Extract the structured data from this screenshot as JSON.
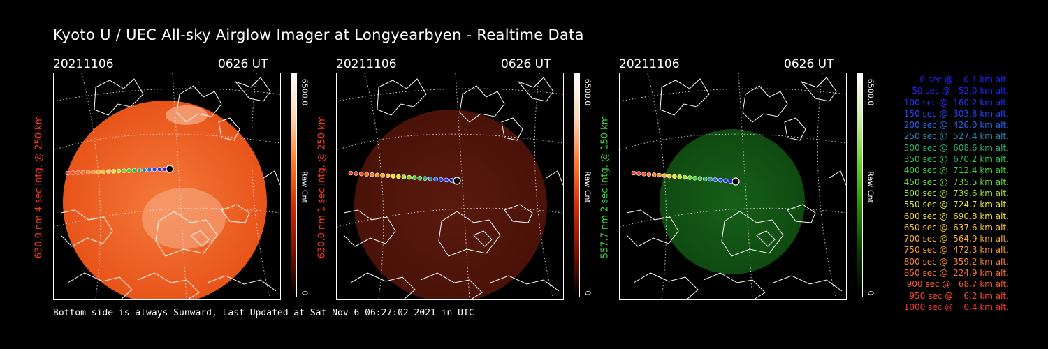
{
  "title": "Kyoto U / UEC All-sky Airglow Imager at Longyearbyen - Realtime Data",
  "footer": "Bottom side is always Sunward, Last Updated at Sat Nov  6 06:27:02 2021 in UTC",
  "panels": [
    {
      "date": "20211106",
      "time": "0626 UT",
      "ylabel": "630.0 nm 4 sec intg. @ 250 km",
      "ylabel_color": "#ff3a1a",
      "colorbar_max": "6500.0",
      "colorbar_min": "0",
      "colorbar_label": "Raw Cnt",
      "colorbar_gradient": [
        "#ffffff",
        "#ffd6b0",
        "#ff7a2a",
        "#d62a00",
        "#7a0f00",
        "#000000"
      ],
      "disk_color": "#e8541a",
      "disk_inner": "#f47a3a",
      "disk_opacity": 1.0
    },
    {
      "date": "20211106",
      "time": "0626 UT",
      "ylabel": "630.0 nm 1 sec intg. @ 250 km",
      "ylabel_color": "#ff3a1a",
      "colorbar_max": "6500.0",
      "colorbar_min": "0",
      "colorbar_label": "Raw Cnt",
      "colorbar_gradient": [
        "#ffffff",
        "#ffd6b0",
        "#ff7a2a",
        "#d62a00",
        "#7a0f00",
        "#000000"
      ],
      "disk_color": "#4a1208",
      "disk_inner": "#5a1a0e",
      "disk_opacity": 1.0
    },
    {
      "date": "20211106",
      "time": "0626 UT",
      "ylabel": "557.7 nm 2 sec intg. @ 150 km",
      "ylabel_color": "#3fd43f",
      "colorbar_max": "6500.0",
      "colorbar_min": "0",
      "colorbar_label": "Raw Cnt",
      "colorbar_gradient": [
        "#ffffff",
        "#c8f0a8",
        "#6ad02a",
        "#2a8a0a",
        "#0a3a00",
        "#000000"
      ],
      "disk_color": "#0f4a10",
      "disk_inner": "#17601a",
      "disk_opacity": 1.0
    }
  ],
  "legend": [
    {
      "text": "   0 sec @    0.1 km alt.",
      "color": "#2222ff"
    },
    {
      "text": "  50 sec @   52.0 km alt.",
      "color": "#2222ff"
    },
    {
      "text": " 100 sec @  160.2 km alt.",
      "color": "#2233ff"
    },
    {
      "text": " 150 sec @  303.8 km alt.",
      "color": "#2244ff"
    },
    {
      "text": " 200 sec @  426.0 km alt.",
      "color": "#2266ee"
    },
    {
      "text": " 250 sec @  527.4 km alt.",
      "color": "#2a8ab8"
    },
    {
      "text": " 300 sec @  608.6 km alt.",
      "color": "#2ab07a"
    },
    {
      "text": " 350 sec @  670.2 km alt.",
      "color": "#2ac84a"
    },
    {
      "text": " 400 sec @  712.4 km alt.",
      "color": "#3ad82a"
    },
    {
      "text": " 450 sec @  735.5 km alt.",
      "color": "#6ae02a"
    },
    {
      "text": " 500 sec @  739.6 km alt.",
      "color": "#a8e82a"
    },
    {
      "text": " 550 sec @  724.7 km alt.",
      "color": "#e0e82a"
    },
    {
      "text": " 600 sec @  690.8 km alt.",
      "color": "#f8e02a"
    },
    {
      "text": " 650 sec @  637.6 km alt.",
      "color": "#f8c82a"
    },
    {
      "text": " 700 sec @  564.9 km alt.",
      "color": "#f8b02a"
    },
    {
      "text": " 750 sec @  472.3 km alt.",
      "color": "#f89a2a"
    },
    {
      "text": " 800 sec @  359.2 km alt.",
      "color": "#f8842a"
    },
    {
      "text": " 850 sec @  224.9 km alt.",
      "color": "#f86e2a"
    },
    {
      "text": " 900 sec @   68.7 km alt.",
      "color": "#f85a2a"
    },
    {
      "text": " 950 sec @    6.2 km alt.",
      "color": "#f8482a"
    },
    {
      "text": "1000 sec @    0.4 km alt.",
      "color": "#f83a2a"
    }
  ]
}
